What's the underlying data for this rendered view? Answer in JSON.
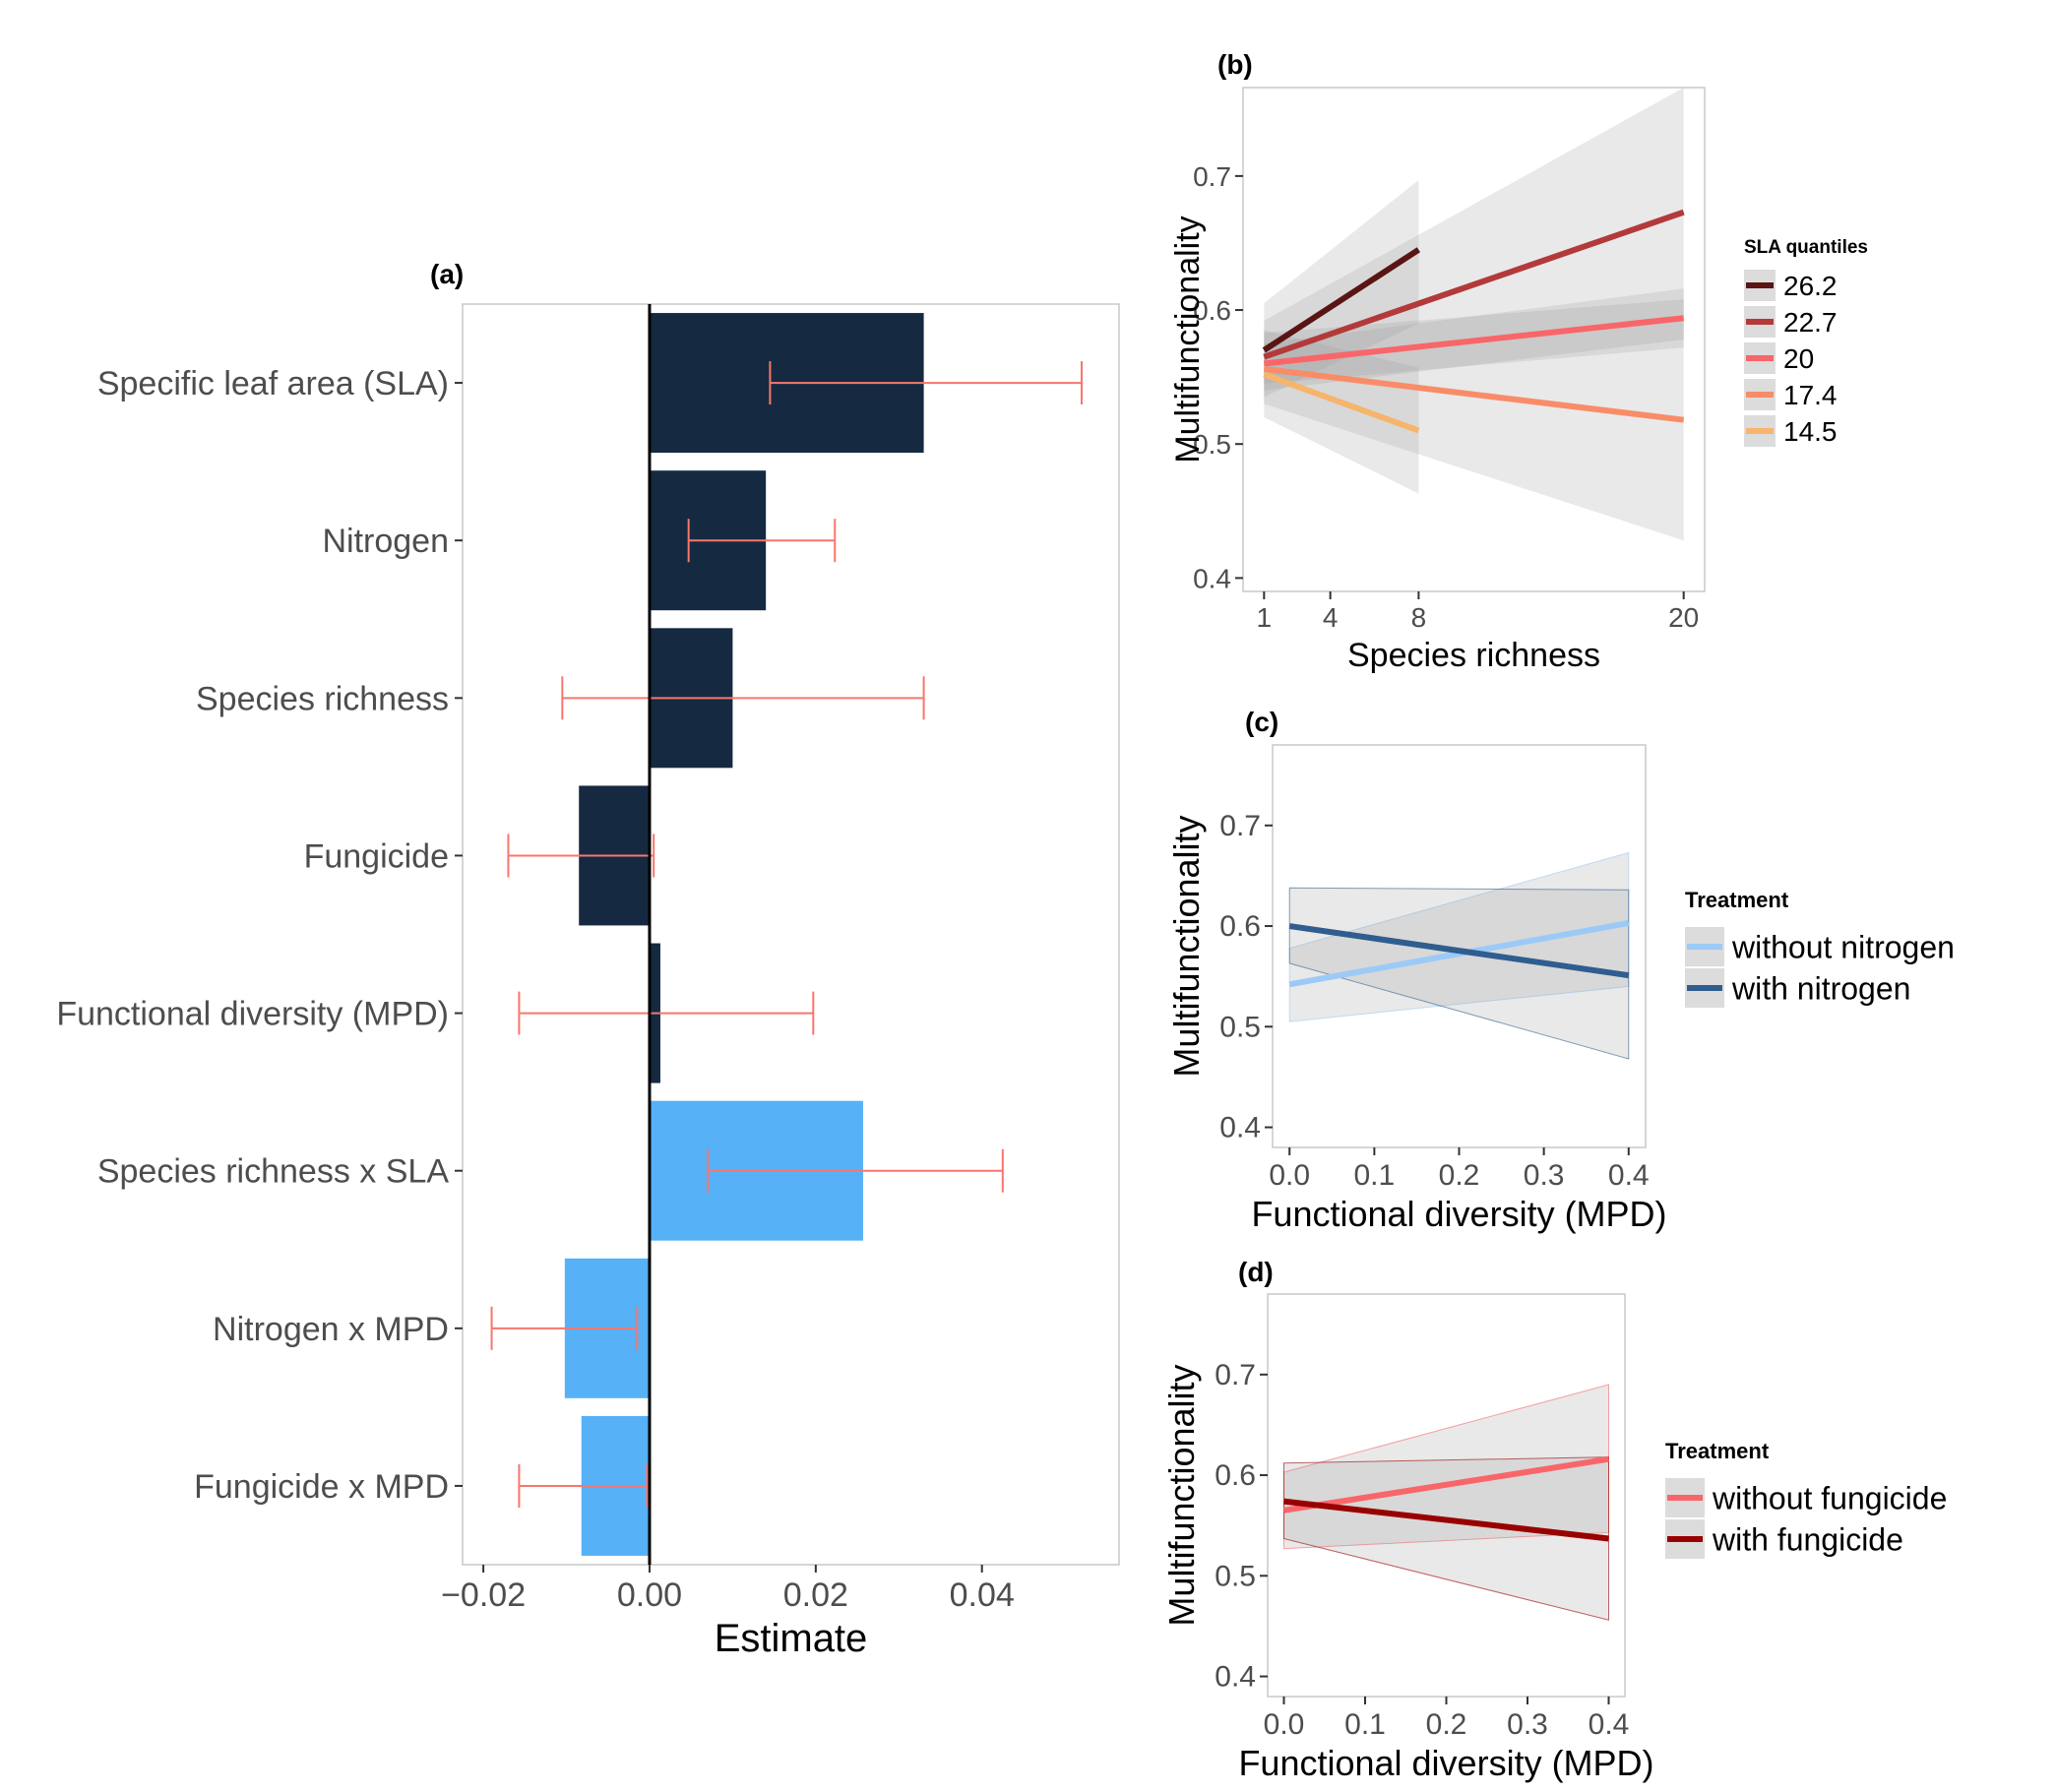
{
  "chart_data": [
    {
      "id": "a",
      "panel_label": "(a)",
      "type": "bar",
      "orientation": "horizontal",
      "xlabel": "Estimate",
      "xlim": [
        -0.0225,
        0.0565
      ],
      "xticks": [
        -0.02,
        0.0,
        0.02,
        0.04
      ],
      "xtick_labels": [
        "−0.02",
        "0.00",
        "0.02",
        "0.04"
      ],
      "grid": false,
      "bars": [
        {
          "label": "Specific leaf area (SLA)",
          "value": 0.033,
          "ci": [
            0.0145,
            0.052
          ],
          "color": "#152a40"
        },
        {
          "label": "Nitrogen",
          "value": 0.014,
          "ci": [
            0.0047,
            0.0223
          ],
          "color": "#152a40"
        },
        {
          "label": "Species richness",
          "value": 0.01,
          "ci": [
            -0.0105,
            0.033
          ],
          "color": "#152a40"
        },
        {
          "label": "Fungicide",
          "value": -0.0085,
          "ci": [
            -0.017,
            0.0005
          ],
          "color": "#152a40"
        },
        {
          "label": "Functional diversity (MPD)",
          "value": 0.0013,
          "ci": [
            -0.0157,
            0.0197
          ],
          "color": "#152a40"
        },
        {
          "label": "Species richness x SLA",
          "value": 0.0257,
          "ci": [
            0.007,
            0.0425
          ],
          "color": "#56b1f7"
        },
        {
          "label": "Nitrogen x MPD",
          "value": -0.0102,
          "ci": [
            -0.019,
            -0.0015
          ],
          "color": "#56b1f7"
        },
        {
          "label": "Fungicide x MPD",
          "value": -0.0082,
          "ci": [
            -0.0157,
            -0.0003
          ],
          "color": "#56b1f7"
        }
      ],
      "errorbar_color": "#f8766d"
    },
    {
      "id": "b",
      "panel_label": "(b)",
      "type": "line",
      "xlabel": "Species richness",
      "ylabel": "Multifunctionality",
      "xlim": [
        0.05,
        20.95
      ],
      "ylim": [
        0.39,
        0.766
      ],
      "xticks": [
        1,
        4,
        8,
        20
      ],
      "xtick_labels": [
        "1",
        "4",
        "8",
        "20"
      ],
      "yticks": [
        0.4,
        0.5,
        0.6,
        0.7
      ],
      "ytick_labels": [
        "0.4",
        "0.5",
        "0.6",
        "0.7"
      ],
      "legend_title": "SLA quantiles",
      "legend_position": "right",
      "series": [
        {
          "name": "26.2",
          "color": "#5a1414",
          "x": [
            1,
            8
          ],
          "y": [
            0.57,
            0.645
          ],
          "band_lower": [
            0.535,
            0.59
          ],
          "band_upper": [
            0.605,
            0.697
          ]
        },
        {
          "name": "22.7",
          "color": "#b33a3a",
          "x": [
            1,
            20
          ],
          "y": [
            0.565,
            0.673
          ],
          "band_lower": [
            0.54,
            0.578
          ],
          "band_upper": [
            0.592,
            0.766
          ]
        },
        {
          "name": "20",
          "color": "#f8666a",
          "x": [
            1,
            20
          ],
          "y": [
            0.56,
            0.594
          ],
          "band_lower": [
            0.545,
            0.572
          ],
          "band_upper": [
            0.575,
            0.616
          ]
        },
        {
          "name": "17.4",
          "color": "#f98c68",
          "x": [
            1,
            20
          ],
          "y": [
            0.556,
            0.518
          ],
          "band_lower": [
            0.53,
            0.428
          ],
          "band_upper": [
            0.583,
            0.608
          ]
        },
        {
          "name": "14.5",
          "color": "#f7b46c",
          "x": [
            1,
            8
          ],
          "y": [
            0.552,
            0.51
          ],
          "band_lower": [
            0.52,
            0.463
          ],
          "band_upper": [
            0.585,
            0.557
          ]
        }
      ]
    },
    {
      "id": "c",
      "panel_label": "(c)",
      "type": "line",
      "xlabel": "Functional diversity (MPD)",
      "ylabel": "Multifunctionality",
      "xlim": [
        -0.02,
        0.42
      ],
      "ylim": [
        0.38,
        0.78
      ],
      "xticks": [
        0.0,
        0.1,
        0.2,
        0.3,
        0.4
      ],
      "xtick_labels": [
        "0.0",
        "0.1",
        "0.2",
        "0.3",
        "0.4"
      ],
      "yticks": [
        0.4,
        0.5,
        0.6,
        0.7
      ],
      "ytick_labels": [
        "0.4",
        "0.5",
        "0.6",
        "0.7"
      ],
      "legend_title": "Treatment",
      "legend_position": "right",
      "series": [
        {
          "name": "without nitrogen",
          "color": "#9ccaf7",
          "x": [
            0.0,
            0.4
          ],
          "y": [
            0.542,
            0.603
          ],
          "band_lower": [
            0.505,
            0.54
          ],
          "band_upper": [
            0.578,
            0.673
          ]
        },
        {
          "name": "with nitrogen",
          "color": "#2f5d8f",
          "x": [
            0.0,
            0.4
          ],
          "y": [
            0.6,
            0.551
          ],
          "band_lower": [
            0.563,
            0.468
          ],
          "band_upper": [
            0.638,
            0.636
          ]
        }
      ]
    },
    {
      "id": "d",
      "panel_label": "(d)",
      "type": "line",
      "xlabel": "Functional diversity (MPD)",
      "ylabel": "Multifunctionality",
      "xlim": [
        -0.02,
        0.42
      ],
      "ylim": [
        0.38,
        0.78
      ],
      "xticks": [
        0.0,
        0.1,
        0.2,
        0.3,
        0.4
      ],
      "xtick_labels": [
        "0.0",
        "0.1",
        "0.2",
        "0.3",
        "0.4"
      ],
      "yticks": [
        0.4,
        0.5,
        0.6,
        0.7
      ],
      "ytick_labels": [
        "0.4",
        "0.5",
        "0.6",
        "0.7"
      ],
      "legend_title": "Treatment",
      "legend_position": "right",
      "series": [
        {
          "name": "without fungicide",
          "color": "#f8666a",
          "x": [
            0.0,
            0.4
          ],
          "y": [
            0.565,
            0.616
          ],
          "band_lower": [
            0.527,
            0.543
          ],
          "band_upper": [
            0.603,
            0.69
          ]
        },
        {
          "name": "with fungicide",
          "color": "#990000",
          "x": [
            0.0,
            0.4
          ],
          "y": [
            0.574,
            0.537
          ],
          "band_lower": [
            0.537,
            0.456
          ],
          "band_upper": [
            0.612,
            0.618
          ]
        }
      ]
    }
  ]
}
